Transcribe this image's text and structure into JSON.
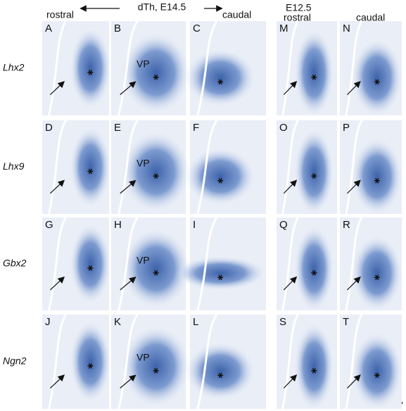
{
  "header": {
    "rostral": "rostral",
    "title": "dTh, E14.5",
    "caudal": "caudal",
    "stage": "E12.5",
    "stage_rostral": "rostral",
    "stage_caudal": "caudal"
  },
  "rows": [
    {
      "gene": "Lhx2",
      "panels": [
        "A",
        "B",
        "C",
        "M",
        "N"
      ],
      "region": "VP"
    },
    {
      "gene": "Lhx9",
      "panels": [
        "D",
        "E",
        "F",
        "O",
        "P"
      ],
      "region": "VP"
    },
    {
      "gene": "Gbx2",
      "panels": [
        "G",
        "H",
        "I",
        "Q",
        "R"
      ],
      "region": "VP"
    },
    {
      "gene": "Ngn2",
      "panels": [
        "J",
        "K",
        "L",
        "S",
        "T"
      ],
      "region": "VP"
    }
  ]
}
